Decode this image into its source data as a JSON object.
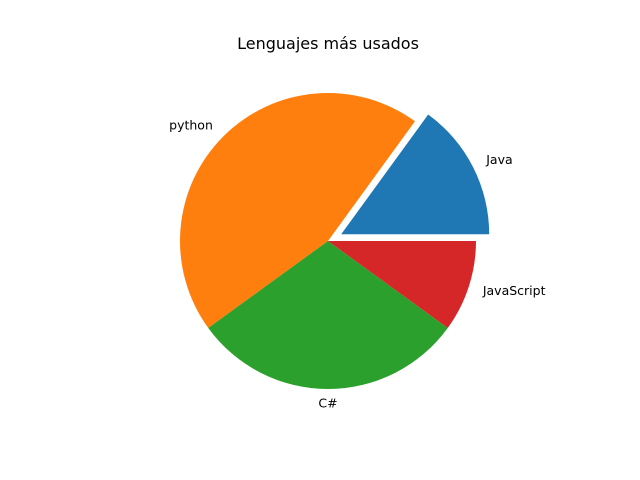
{
  "chart_data": {
    "type": "pie",
    "title": "Lenguajes más usados",
    "start_angle_deg": 0,
    "direction": "counterclockwise",
    "legend": "none",
    "slices": [
      {
        "label": "Java",
        "value": 15,
        "color": "#1f77b4",
        "explode": 0.1
      },
      {
        "label": "python",
        "value": 45,
        "color": "#ff7f0e",
        "explode": 0
      },
      {
        "label": "C#",
        "value": 30,
        "color": "#2ca02c",
        "explode": 0
      },
      {
        "label": "JavaScript",
        "value": 10,
        "color": "#d62728",
        "explode": 0
      }
    ]
  }
}
